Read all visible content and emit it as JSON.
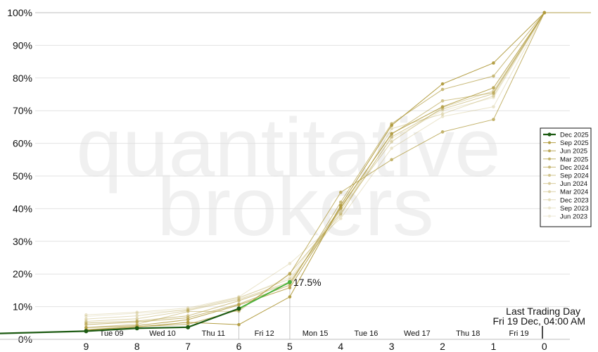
{
  "watermark": [
    "quantitative",
    "brokers"
  ],
  "annotation": {
    "label": "17.5%"
  },
  "last_trading_day": {
    "line1": "Last Trading Day",
    "line2": "Fri 19 Dec, 04:00 AM"
  },
  "colors": {
    "highlight": "#1c5a12",
    "current": "#4bb23c",
    "history": "#b09a3c"
  },
  "chart_data": {
    "type": "line",
    "x": [
      9,
      8,
      7,
      6,
      5,
      4,
      3,
      2,
      1,
      0
    ],
    "xlim": [
      10,
      -0.5
    ],
    "ylim": [
      0,
      100
    ],
    "yticks": [
      0,
      10,
      20,
      30,
      40,
      50,
      60,
      70,
      80,
      90,
      100
    ],
    "ytick_labels": [
      "0%",
      "10%",
      "20%",
      "30%",
      "40%",
      "50%",
      "60%",
      "70%",
      "80%",
      "90%",
      "100%"
    ],
    "xtick_labels": [
      "9",
      "8",
      "7",
      "6",
      "5",
      "4",
      "3",
      "2",
      "1",
      "0"
    ],
    "date_labels": [
      {
        "x": 8.5,
        "label": "Tue 09"
      },
      {
        "x": 7.5,
        "label": "Wed 10"
      },
      {
        "x": 6.5,
        "label": "Thu 11"
      },
      {
        "x": 5.5,
        "label": "Fri 12"
      },
      {
        "x": 4.5,
        "label": "Mon 15"
      },
      {
        "x": 3.5,
        "label": "Tue 16"
      },
      {
        "x": 2.5,
        "label": "Wed 17"
      },
      {
        "x": 1.5,
        "label": "Thu 18"
      },
      {
        "x": 0.5,
        "label": "Fri 19"
      }
    ],
    "grid": true,
    "legend_position": "right",
    "series": [
      {
        "name": "Dec 2025",
        "color": "#1c5a12",
        "opacity": 1.0,
        "width": 2.2,
        "values": [
          2.5,
          3.4,
          3.7,
          9.4,
          17.5,
          null,
          null,
          null,
          null,
          null
        ],
        "lead_in": 1.8
      },
      {
        "name": "Sep 2025",
        "color": "#b09a3c",
        "opacity": 0.95,
        "width": 1,
        "values": [
          2.8,
          3.8,
          5.2,
          4.5,
          13.0,
          41.0,
          65.5,
          78.2,
          84.6,
          100
        ]
      },
      {
        "name": "Jun 2025",
        "color": "#b09a3c",
        "opacity": 0.85,
        "width": 1,
        "values": [
          3.6,
          4.2,
          6.0,
          10.5,
          15.8,
          40.2,
          63.0,
          71.2,
          77.0,
          100
        ]
      },
      {
        "name": "Mar 2025",
        "color": "#b09a3c",
        "opacity": 0.75,
        "width": 1,
        "values": [
          3.0,
          3.9,
          4.6,
          9.0,
          20.0,
          45.0,
          55.0,
          63.5,
          67.3,
          100
        ]
      },
      {
        "name": "Dec 2024",
        "color": "#b09a3c",
        "opacity": 0.68,
        "width": 1,
        "values": [
          4.5,
          5.3,
          6.6,
          10.8,
          16.6,
          42.0,
          66.0,
          76.5,
          80.6,
          100
        ]
      },
      {
        "name": "Sep 2024",
        "color": "#b09a3c",
        "opacity": 0.58,
        "width": 1,
        "values": [
          5.0,
          5.6,
          7.2,
          11.8,
          17.2,
          40.5,
          62.8,
          73.0,
          75.5,
          100
        ]
      },
      {
        "name": "Jun 2024",
        "color": "#b09a3c",
        "opacity": 0.5,
        "width": 1,
        "values": [
          3.6,
          4.6,
          8.5,
          8.6,
          20.2,
          38.5,
          62.0,
          70.5,
          75.2,
          100
        ]
      },
      {
        "name": "Mar 2024",
        "color": "#b09a3c",
        "opacity": 0.42,
        "width": 1,
        "values": [
          5.5,
          6.3,
          8.8,
          12.2,
          17.6,
          39.5,
          60.5,
          71.0,
          76.0,
          100
        ]
      },
      {
        "name": "Dec 2023",
        "color": "#b09a3c",
        "opacity": 0.34,
        "width": 1,
        "values": [
          6.2,
          7.2,
          9.2,
          12.8,
          18.4,
          38.0,
          64.5,
          69.0,
          74.5,
          100
        ]
      },
      {
        "name": "Sep 2023",
        "color": "#b09a3c",
        "opacity": 0.26,
        "width": 1,
        "values": [
          7.5,
          8.3,
          9.6,
          13.0,
          23.2,
          37.0,
          58.5,
          68.2,
          71.2,
          100
        ]
      },
      {
        "name": "Jun 2023",
        "color": "#b09a3c",
        "opacity": 0.2,
        "width": 1,
        "values": [
          7.0,
          8.0,
          9.0,
          12.5,
          19.0,
          40.0,
          61.5,
          70.0,
          74.0,
          100
        ]
      }
    ]
  }
}
